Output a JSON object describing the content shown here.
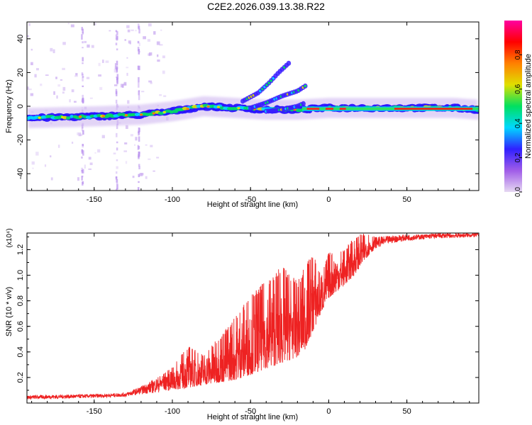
{
  "title": "C2E2.2026.039.13.38.R22",
  "chart_data": [
    {
      "type": "heatmap",
      "name": "spectrogram",
      "xlabel": "Height of straight line (km)",
      "ylabel": "Frequency (Hz)",
      "xlim": [
        -193,
        96
      ],
      "ylim": [
        -50,
        50
      ],
      "xticks": [
        -150,
        -100,
        -50,
        0,
        50
      ],
      "xtick_labels": [
        "-150",
        "-100",
        "-50",
        "0",
        "50"
      ],
      "yticks": [
        -40,
        -20,
        0,
        20,
        40
      ],
      "ytick_labels": [
        "-40",
        "-20",
        "0",
        "20",
        "40"
      ],
      "colorbar": {
        "label": "Normalized spectral amplitude",
        "range": [
          0,
          1
        ],
        "ticks": [
          0.0,
          0.2,
          0.4,
          0.6,
          0.8
        ],
        "tick_labels": [
          "0.0",
          "0.2",
          "0.4",
          "0.6",
          "0.8"
        ],
        "colors": [
          "#e6d8f2",
          "#a05ce8",
          "#3020ff",
          "#00d8ff",
          "#00e060",
          "#e0e000",
          "#ff8000",
          "#ff0000",
          "#ff00a0"
        ]
      },
      "main_band": [
        [
          -193,
          -7
        ],
        [
          -150,
          -6
        ],
        [
          -120,
          -5
        ],
        [
          -100,
          -3
        ],
        [
          -80,
          0
        ],
        [
          -60,
          -1
        ],
        [
          -40,
          -2
        ],
        [
          -20,
          -2
        ],
        [
          0,
          -1
        ],
        [
          20,
          -1
        ],
        [
          40,
          -1
        ],
        [
          60,
          -1
        ],
        [
          80,
          -1
        ],
        [
          96,
          -2
        ]
      ],
      "branches": [
        {
          "name": "upper",
          "points": [
            [
              -55,
              3
            ],
            [
              -45,
              8
            ],
            [
              -38,
              14
            ],
            [
              -32,
              20
            ],
            [
              -25,
              26
            ]
          ]
        },
        {
          "name": "middle",
          "points": [
            [
              -50,
              -1
            ],
            [
              -40,
              2
            ],
            [
              -30,
              6
            ],
            [
              -20,
              9
            ],
            [
              -15,
              12
            ]
          ]
        },
        {
          "name": "lower",
          "points": [
            [
              -40,
              -3
            ],
            [
              -30,
              -2
            ],
            [
              -20,
              0
            ],
            [
              -15,
              2
            ]
          ]
        }
      ],
      "strong_segment": {
        "x": [
          -17,
          96
        ],
        "frequency": -1.5
      }
    },
    {
      "type": "line",
      "name": "snr",
      "xlabel": "Height of straight line (km)",
      "ylabel": "SNR (10 * v/v)",
      "scale_label": "(x10⁴)",
      "xlim": [
        -193,
        96
      ],
      "ylim": [
        0,
        1.33
      ],
      "xticks": [
        -150,
        -100,
        -50,
        0,
        50
      ],
      "xtick_labels": [
        "-150",
        "-100",
        "-50",
        "0",
        "50"
      ],
      "yticks": [
        0.2,
        0.4,
        0.6,
        0.8,
        1.0,
        1.2
      ],
      "ytick_labels": [
        "0.2",
        "0.4",
        "0.6",
        "0.8",
        "1.0",
        "1.2"
      ],
      "color": "#ee2222",
      "envelope": {
        "x": [
          -193,
          -150,
          -130,
          -120,
          -110,
          -100,
          -90,
          -80,
          -70,
          -60,
          -50,
          -40,
          -30,
          -20,
          -15,
          -10,
          -5,
          0,
          10,
          15,
          20,
          25,
          30,
          40,
          50,
          60,
          70,
          80,
          96
        ],
        "base": [
          0.03,
          0.04,
          0.05,
          0.07,
          0.08,
          0.1,
          0.12,
          0.14,
          0.16,
          0.18,
          0.22,
          0.27,
          0.31,
          0.36,
          0.42,
          0.56,
          0.7,
          0.82,
          0.92,
          0.98,
          1.06,
          1.15,
          1.21,
          1.25,
          1.27,
          1.28,
          1.29,
          1.29,
          1.3
        ],
        "peak": [
          0.06,
          0.07,
          0.08,
          0.13,
          0.2,
          0.28,
          0.45,
          0.38,
          0.52,
          0.68,
          0.85,
          0.96,
          1.08,
          0.95,
          1.08,
          1.18,
          1.0,
          1.18,
          1.2,
          1.28,
          1.32,
          1.33,
          1.3,
          1.31,
          1.32,
          1.32,
          1.33,
          1.33,
          1.33
        ]
      }
    }
  ]
}
